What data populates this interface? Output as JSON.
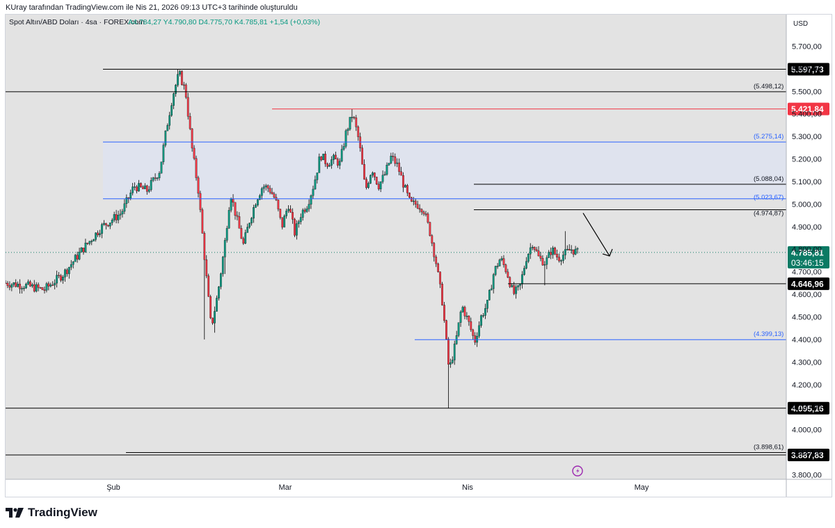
{
  "header": {
    "caption": "KUray tarafından TradingView.com ile Nis 21, 2026 09:13 UTC+3 tarihinde oluşturuldu"
  },
  "legend": {
    "symbol": "Spot Altın/ABD Doları · 4sa · FOREX.com",
    "ohlc": "A4.784,27  Y4.790,80  D4.775,70  K4.785,81  +1,54 (+0,03%)"
  },
  "footer": {
    "brand": "TradingView"
  },
  "colors": {
    "up": "#089981",
    "down": "#f23645",
    "level": "#000000",
    "fib": "#2962ff",
    "zone": "#dfe3ee",
    "resistance_red": "#f23645",
    "last_price": "#0b7a64",
    "bg": "#e3e3e3",
    "event": "#9c27b0"
  },
  "chart_data": {
    "type": "candlestick",
    "title": "Spot Altın/ABD Doları · 4sa · FOREX.com",
    "currency": "USD",
    "ylim": [
      3780,
      5840
    ],
    "x_ticks": [
      "Şub",
      "Mar",
      "Nis",
      "May"
    ],
    "y_ticks": [
      "5.700,00",
      "5.600,00",
      "5.500,00",
      "5.400,00",
      "5.300,00",
      "5.200,00",
      "5.100,00",
      "5.000,00",
      "4.900,00",
      "4.800,00",
      "4.700,00",
      "4.600,00",
      "4.500,00",
      "4.400,00",
      "4.300,00",
      "4.200,00",
      "4.100,00",
      "4.000,00",
      "3.900,00",
      "3.800,00"
    ],
    "y_tick_values": [
      5700,
      5600,
      5500,
      5400,
      5300,
      5200,
      5100,
      5000,
      4900,
      4800,
      4700,
      4600,
      4500,
      4400,
      4300,
      4200,
      4100,
      4000,
      3900,
      3800
    ],
    "horizontal_lines": [
      {
        "value": 5597.73,
        "label": "5.597,73",
        "style": "badge-black"
      },
      {
        "value": 5498.12,
        "label": "(5.498,12)",
        "style": "level-black"
      },
      {
        "value": 5421.84,
        "label": "5.421,84",
        "style": "badge-red"
      },
      {
        "value": 5275.14,
        "label": "(5.275,14)",
        "style": "fib-blue"
      },
      {
        "value": 5088.04,
        "label": "(5.088,04)",
        "style": "level-black"
      },
      {
        "value": 5023.67,
        "label": "(5.023,67)",
        "style": "fib-blue"
      },
      {
        "value": 4974.87,
        "label": "(4.974,87)",
        "style": "level-black"
      },
      {
        "value": 4646.96,
        "label": "4.646,96",
        "style": "badge-black"
      },
      {
        "value": 4399.13,
        "label": "(4.399,13)",
        "style": "fib-blue"
      },
      {
        "value": 4095.16,
        "label": "4.095,16",
        "style": "badge-black"
      },
      {
        "value": 3898.61,
        "label": "(3.898,61)",
        "style": "level-black"
      },
      {
        "value": 3887.83,
        "label": "3.887,83",
        "style": "badge-black"
      }
    ],
    "zone": {
      "from": 5023.67,
      "to": 5275.14
    },
    "last_price": {
      "value": 4785.81,
      "label": "4.785,81",
      "countdown": "03:46:15"
    },
    "price_path": [
      {
        "t": 0,
        "p": 4650
      },
      {
        "t": 3,
        "p": 4640
      },
      {
        "t": 6,
        "p": 4620
      },
      {
        "t": 9,
        "p": 4690
      },
      {
        "t": 12,
        "p": 4800
      },
      {
        "t": 15,
        "p": 4900
      },
      {
        "t": 18,
        "p": 4960
      },
      {
        "t": 20,
        "p": 5080
      },
      {
        "t": 22,
        "p": 5060
      },
      {
        "t": 24,
        "p": 5150
      },
      {
        "t": 25,
        "p": 5330
      },
      {
        "t": 26,
        "p": 5480
      },
      {
        "t": 27,
        "p": 5580
      },
      {
        "t": 28,
        "p": 5500
      },
      {
        "t": 29,
        "p": 5250
      },
      {
        "t": 30,
        "p": 5060
      },
      {
        "t": 31,
        "p": 4750
      },
      {
        "t": 32,
        "p": 4450
      },
      {
        "t": 33,
        "p": 4600
      },
      {
        "t": 34,
        "p": 4800
      },
      {
        "t": 35,
        "p": 5050
      },
      {
        "t": 36,
        "p": 4930
      },
      {
        "t": 37,
        "p": 4820
      },
      {
        "t": 38,
        "p": 4930
      },
      {
        "t": 39,
        "p": 5020
      },
      {
        "t": 40,
        "p": 5080
      },
      {
        "t": 41,
        "p": 5070
      },
      {
        "t": 42,
        "p": 5020
      },
      {
        "t": 43,
        "p": 4900
      },
      {
        "t": 44,
        "p": 5000
      },
      {
        "t": 45,
        "p": 4870
      },
      {
        "t": 46,
        "p": 4960
      },
      {
        "t": 47,
        "p": 5000
      },
      {
        "t": 48,
        "p": 5090
      },
      {
        "t": 49,
        "p": 5220
      },
      {
        "t": 50,
        "p": 5180
      },
      {
        "t": 51,
        "p": 5200
      },
      {
        "t": 52,
        "p": 5180
      },
      {
        "t": 53,
        "p": 5320
      },
      {
        "t": 54,
        "p": 5400
      },
      {
        "t": 55,
        "p": 5280
      },
      {
        "t": 56,
        "p": 5060
      },
      {
        "t": 57,
        "p": 5160
      },
      {
        "t": 58,
        "p": 5080
      },
      {
        "t": 59,
        "p": 5130
      },
      {
        "t": 60,
        "p": 5210
      },
      {
        "t": 61,
        "p": 5170
      },
      {
        "t": 62,
        "p": 5080
      },
      {
        "t": 63,
        "p": 5000
      },
      {
        "t": 64,
        "p": 5000
      },
      {
        "t": 65,
        "p": 4980
      },
      {
        "t": 66,
        "p": 4880
      },
      {
        "t": 67,
        "p": 4740
      },
      {
        "t": 68,
        "p": 4560
      },
      {
        "t": 69,
        "p": 4260
      },
      {
        "t": 70,
        "p": 4380
      },
      {
        "t": 71,
        "p": 4550
      },
      {
        "t": 72,
        "p": 4480
      },
      {
        "t": 73,
        "p": 4390
      },
      {
        "t": 74,
        "p": 4500
      },
      {
        "t": 75,
        "p": 4560
      },
      {
        "t": 76,
        "p": 4700
      },
      {
        "t": 77,
        "p": 4760
      },
      {
        "t": 78,
        "p": 4700
      },
      {
        "t": 79,
        "p": 4600
      },
      {
        "t": 80,
        "p": 4630
      },
      {
        "t": 81,
        "p": 4760
      },
      {
        "t": 82,
        "p": 4830
      },
      {
        "t": 83,
        "p": 4760
      },
      {
        "t": 84,
        "p": 4740
      },
      {
        "t": 85,
        "p": 4800
      },
      {
        "t": 86,
        "p": 4760
      },
      {
        "t": 87,
        "p": 4780
      },
      {
        "t": 88,
        "p": 4800
      },
      {
        "t": 89,
        "p": 4785
      }
    ]
  }
}
